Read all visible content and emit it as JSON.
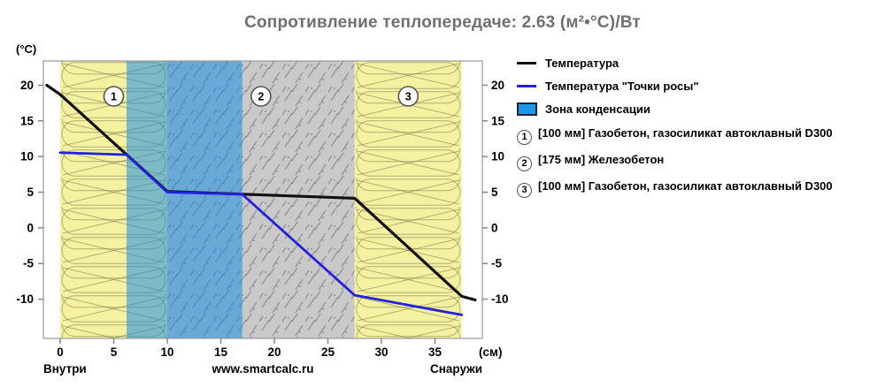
{
  "title": "Сопротивление теплопередаче: 2.63 (м²•°С)/Вт",
  "legend": {
    "items": [
      {
        "label": "Температура",
        "swatch": "line",
        "color": "#111111"
      },
      {
        "label": "Температура \"Точки росы\"",
        "swatch": "line",
        "color": "#2222dd"
      },
      {
        "label": "Зона конденсации",
        "swatch": "rect",
        "color": "#1d97e8"
      }
    ],
    "layers": [
      {
        "num": "1",
        "label": "[100 мм] Газобетон, газосиликат автоклавный D300"
      },
      {
        "num": "2",
        "label": "[175 мм] Железобетон"
      },
      {
        "num": "3",
        "label": "[100 мм] Газобетон, газосиликат автоклавный D300"
      }
    ]
  },
  "chart_data": {
    "type": "line",
    "title": "Сопротивление теплопередаче: 2.63 (м²•°С)/Вт",
    "xlabel": "(см)",
    "ylabel": "(°С)",
    "x_ticks": [
      0,
      5,
      10,
      15,
      20,
      25,
      30,
      35
    ],
    "y_ticks": [
      20,
      15,
      10,
      5,
      0,
      -5,
      -10
    ],
    "xlim": [
      -1.57,
      39.42
    ],
    "ylim": [
      -15.5,
      23.4
    ],
    "grid": false,
    "wall_layers": [
      {
        "num": "1",
        "from_cm": 0,
        "to_cm": 10,
        "material": "insulation",
        "color": "#f4f1a1"
      },
      {
        "num": "2",
        "from_cm": 10,
        "to_cm": 27.5,
        "material": "concrete",
        "color": "#c9c9c9"
      },
      {
        "num": "3",
        "from_cm": 27.5,
        "to_cm": 37.5,
        "material": "insulation",
        "color": "#f4f1a1"
      }
    ],
    "condensation_zone_cm": [
      6.2,
      17
    ],
    "condensation_fill": "rgba(25,140,225,0.55)",
    "series": [
      {
        "name": "Температура",
        "color": "#111111",
        "width": 3.2,
        "points": [
          [
            -1.25,
            20
          ],
          [
            0,
            18.7
          ],
          [
            10,
            5.1
          ],
          [
            27.5,
            4.15
          ],
          [
            37.5,
            -9.6
          ],
          [
            38.75,
            -10.1
          ]
        ]
      },
      {
        "name": "Температура \"Точки росы\"",
        "color": "#2222dd",
        "width": 2.8,
        "points": [
          [
            0,
            10.55
          ],
          [
            6.2,
            10.25
          ],
          [
            10,
            5.0
          ],
          [
            17,
            4.7
          ],
          [
            27.5,
            -9.45
          ],
          [
            37.5,
            -12.2
          ]
        ]
      }
    ],
    "bottom_labels": {
      "left": "Внутри",
      "center": "www.smartcalc.ru",
      "right": "Снаружи"
    }
  }
}
